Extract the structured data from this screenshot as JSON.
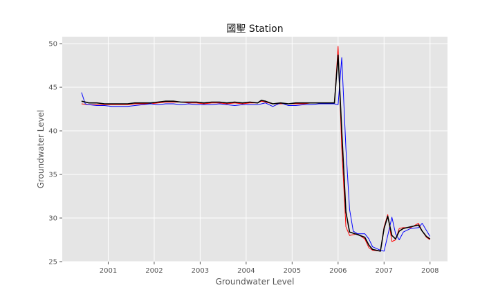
{
  "chart_data": {
    "type": "line",
    "title": "國聖 Station",
    "xlabel": "Groundwater Level",
    "ylabel": "Groundwater Level",
    "xlim": [
      2000.0,
      2008.38
    ],
    "ylim": [
      25,
      50.8
    ],
    "xticks": [
      2001,
      2002,
      2003,
      2004,
      2005,
      2006,
      2007,
      2008
    ],
    "yticks": [
      25,
      30,
      35,
      40,
      45,
      50
    ],
    "grid": true,
    "background": "#e5e5e5",
    "gridColor": "#ffffff",
    "series": [
      {
        "color": "#ff0000",
        "width": 1,
        "points": [
          [
            2000.42,
            43.1
          ],
          [
            2000.58,
            43.0
          ],
          [
            2000.75,
            43.0
          ],
          [
            2000.92,
            43.0
          ],
          [
            2001.08,
            43.0
          ],
          [
            2001.25,
            43.0
          ],
          [
            2001.42,
            43.0
          ],
          [
            2001.58,
            43.1
          ],
          [
            2001.75,
            43.1
          ],
          [
            2001.92,
            43.1
          ],
          [
            2002.08,
            43.2
          ],
          [
            2002.25,
            43.3
          ],
          [
            2002.42,
            43.3
          ],
          [
            2002.58,
            43.3
          ],
          [
            2002.75,
            43.2
          ],
          [
            2002.92,
            43.2
          ],
          [
            2003.08,
            43.1
          ],
          [
            2003.25,
            43.2
          ],
          [
            2003.42,
            43.2
          ],
          [
            2003.58,
            43.1
          ],
          [
            2003.75,
            43.2
          ],
          [
            2003.92,
            43.1
          ],
          [
            2004.08,
            43.2
          ],
          [
            2004.25,
            43.2
          ],
          [
            2004.33,
            43.4
          ],
          [
            2004.42,
            43.3
          ],
          [
            2004.58,
            43.1
          ],
          [
            2004.75,
            43.1
          ],
          [
            2004.92,
            43.1
          ],
          [
            2005.08,
            43.1
          ],
          [
            2005.25,
            43.1
          ],
          [
            2005.42,
            43.2
          ],
          [
            2005.58,
            43.2
          ],
          [
            2005.75,
            43.2
          ],
          [
            2005.92,
            43.2
          ],
          [
            2006.0,
            49.7
          ],
          [
            2006.08,
            38.0
          ],
          [
            2006.17,
            29.0
          ],
          [
            2006.25,
            28.0
          ],
          [
            2006.42,
            28.2
          ],
          [
            2006.58,
            27.6
          ],
          [
            2006.67,
            26.6
          ],
          [
            2006.75,
            26.3
          ],
          [
            2006.92,
            26.2
          ],
          [
            2007.0,
            29.0
          ],
          [
            2007.08,
            30.4
          ],
          [
            2007.17,
            27.3
          ],
          [
            2007.25,
            27.5
          ],
          [
            2007.33,
            28.8
          ],
          [
            2007.42,
            28.9
          ],
          [
            2007.58,
            28.9
          ],
          [
            2007.75,
            29.4
          ],
          [
            2007.83,
            28.5
          ],
          [
            2007.92,
            27.8
          ],
          [
            2008.0,
            27.5
          ]
        ]
      },
      {
        "color": "#0000ff",
        "width": 1,
        "points": [
          [
            2000.42,
            44.4
          ],
          [
            2000.5,
            43.1
          ],
          [
            2000.58,
            43.0
          ],
          [
            2000.75,
            42.9
          ],
          [
            2000.92,
            42.9
          ],
          [
            2001.08,
            42.8
          ],
          [
            2001.25,
            42.8
          ],
          [
            2001.42,
            42.8
          ],
          [
            2001.58,
            42.9
          ],
          [
            2001.75,
            43.0
          ],
          [
            2001.92,
            43.1
          ],
          [
            2002.08,
            43.0
          ],
          [
            2002.25,
            43.1
          ],
          [
            2002.42,
            43.1
          ],
          [
            2002.58,
            43.0
          ],
          [
            2002.75,
            43.1
          ],
          [
            2002.92,
            43.0
          ],
          [
            2003.08,
            43.0
          ],
          [
            2003.25,
            43.0
          ],
          [
            2003.42,
            43.1
          ],
          [
            2003.58,
            43.0
          ],
          [
            2003.75,
            42.9
          ],
          [
            2003.92,
            43.0
          ],
          [
            2004.08,
            43.0
          ],
          [
            2004.25,
            43.0
          ],
          [
            2004.42,
            43.2
          ],
          [
            2004.58,
            42.8
          ],
          [
            2004.75,
            43.2
          ],
          [
            2004.92,
            42.9
          ],
          [
            2005.08,
            42.9
          ],
          [
            2005.25,
            43.0
          ],
          [
            2005.42,
            43.0
          ],
          [
            2005.58,
            43.1
          ],
          [
            2005.75,
            43.1
          ],
          [
            2005.92,
            43.1
          ],
          [
            2006.0,
            43.0
          ],
          [
            2006.08,
            48.4
          ],
          [
            2006.17,
            38.0
          ],
          [
            2006.25,
            31.0
          ],
          [
            2006.33,
            28.5
          ],
          [
            2006.42,
            28.2
          ],
          [
            2006.58,
            28.2
          ],
          [
            2006.67,
            27.6
          ],
          [
            2006.75,
            26.7
          ],
          [
            2006.92,
            26.3
          ],
          [
            2007.0,
            26.2
          ],
          [
            2007.08,
            28.0
          ],
          [
            2007.17,
            30.1
          ],
          [
            2007.25,
            28.2
          ],
          [
            2007.33,
            27.5
          ],
          [
            2007.42,
            28.4
          ],
          [
            2007.58,
            28.8
          ],
          [
            2007.75,
            28.9
          ],
          [
            2007.83,
            29.4
          ],
          [
            2007.92,
            28.6
          ],
          [
            2008.0,
            27.9
          ]
        ]
      },
      {
        "color": "#000000",
        "width": 1.6,
        "points": [
          [
            2000.42,
            43.4
          ],
          [
            2000.58,
            43.2
          ],
          [
            2000.75,
            43.2
          ],
          [
            2000.92,
            43.1
          ],
          [
            2001.08,
            43.1
          ],
          [
            2001.25,
            43.1
          ],
          [
            2001.42,
            43.1
          ],
          [
            2001.58,
            43.2
          ],
          [
            2001.75,
            43.2
          ],
          [
            2001.92,
            43.2
          ],
          [
            2002.08,
            43.3
          ],
          [
            2002.25,
            43.4
          ],
          [
            2002.42,
            43.4
          ],
          [
            2002.58,
            43.3
          ],
          [
            2002.75,
            43.3
          ],
          [
            2002.92,
            43.3
          ],
          [
            2003.08,
            43.2
          ],
          [
            2003.25,
            43.3
          ],
          [
            2003.42,
            43.3
          ],
          [
            2003.58,
            43.2
          ],
          [
            2003.75,
            43.3
          ],
          [
            2003.92,
            43.2
          ],
          [
            2004.08,
            43.3
          ],
          [
            2004.25,
            43.2
          ],
          [
            2004.33,
            43.5
          ],
          [
            2004.42,
            43.4
          ],
          [
            2004.58,
            43.1
          ],
          [
            2004.75,
            43.2
          ],
          [
            2004.92,
            43.1
          ],
          [
            2005.08,
            43.2
          ],
          [
            2005.25,
            43.2
          ],
          [
            2005.42,
            43.2
          ],
          [
            2005.58,
            43.2
          ],
          [
            2005.75,
            43.2
          ],
          [
            2005.92,
            43.2
          ],
          [
            2006.0,
            48.7
          ],
          [
            2006.08,
            40.0
          ],
          [
            2006.17,
            30.7
          ],
          [
            2006.25,
            28.4
          ],
          [
            2006.42,
            28.1
          ],
          [
            2006.58,
            27.8
          ],
          [
            2006.67,
            26.9
          ],
          [
            2006.75,
            26.4
          ],
          [
            2006.92,
            26.2
          ],
          [
            2007.0,
            28.8
          ],
          [
            2007.08,
            30.2
          ],
          [
            2007.17,
            28.0
          ],
          [
            2007.25,
            27.6
          ],
          [
            2007.33,
            28.5
          ],
          [
            2007.42,
            28.8
          ],
          [
            2007.58,
            29.0
          ],
          [
            2007.75,
            29.2
          ],
          [
            2007.83,
            28.5
          ],
          [
            2007.92,
            27.9
          ],
          [
            2008.0,
            27.6
          ]
        ]
      }
    ]
  }
}
